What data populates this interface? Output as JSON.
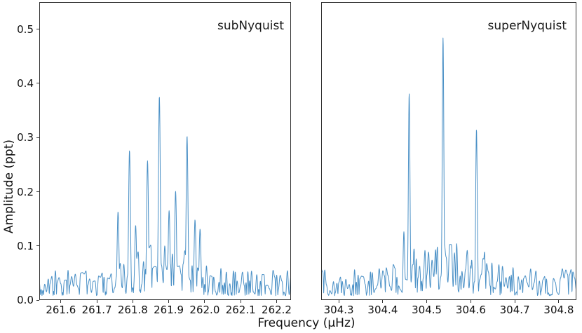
{
  "figure": {
    "xlabel": "Frequency (μHz)",
    "ylabel": "Amplitude (ppt)",
    "line_color": "#4a90c6",
    "axis_color": "#333333",
    "background_color": "#ffffff"
  },
  "chart_data": [
    {
      "type": "line",
      "panel_label": "subNyquist",
      "xlabel": "Frequency (μHz)",
      "ylabel": "Amplitude (ppt)",
      "xlim": [
        261.54,
        262.24
      ],
      "ylim": [
        0,
        0.55
      ],
      "xticks": [
        261.6,
        261.7,
        261.8,
        261.9,
        262.0,
        262.1,
        262.2
      ],
      "xtick_labels": [
        "261.6",
        "261.7",
        "261.8",
        "261.9",
        "262.0",
        "262.1",
        "262.2"
      ],
      "yticks": [
        0.0,
        0.1,
        0.2,
        0.3,
        0.4,
        0.5
      ],
      "ytick_labels": [
        "0.0",
        "0.1",
        "0.2",
        "0.3",
        "0.4",
        "0.5"
      ],
      "show_ytick_labels": true,
      "grid": false,
      "legend": "none",
      "peak_sigma": 0.0036,
      "peaks": [
        {
          "freq": 261.759,
          "amp": 0.163
        },
        {
          "freq": 261.775,
          "amp": 0.066
        },
        {
          "freq": 261.791,
          "amp": 0.276
        },
        {
          "freq": 261.808,
          "amp": 0.138
        },
        {
          "freq": 261.841,
          "amp": 0.257
        },
        {
          "freq": 261.874,
          "amp": 0.376
        },
        {
          "freq": 261.889,
          "amp": 0.1
        },
        {
          "freq": 261.901,
          "amp": 0.165
        },
        {
          "freq": 261.919,
          "amp": 0.201
        },
        {
          "freq": 261.951,
          "amp": 0.303
        },
        {
          "freq": 261.973,
          "amp": 0.148
        },
        {
          "freq": 261.987,
          "amp": 0.131
        }
      ],
      "noise": {
        "floor": 0.008,
        "range": 0.05,
        "dx": 0.005,
        "env_center": 261.88,
        "env_width": 0.085,
        "env_gain": 1.1,
        "seed": 20
      }
    },
    {
      "type": "line",
      "panel_label": "superNyquist",
      "xlabel": "Frequency (μHz)",
      "ylabel": "Amplitude (ppt)",
      "xlim": [
        304.26,
        304.84
      ],
      "ylim": [
        0,
        0.55
      ],
      "xticks": [
        304.3,
        304.4,
        304.5,
        304.6,
        304.7,
        304.8
      ],
      "xtick_labels": [
        "304.3",
        "304.4",
        "304.5",
        "304.6",
        "304.7",
        "304.8"
      ],
      "yticks": [
        0.0,
        0.1,
        0.2,
        0.3,
        0.4,
        0.5
      ],
      "ytick_labels": [
        "0.0",
        "0.1",
        "0.2",
        "0.3",
        "0.4",
        "0.5"
      ],
      "show_ytick_labels": false,
      "grid": false,
      "legend": "none",
      "peak_sigma": 0.0026,
      "peaks": [
        {
          "freq": 304.448,
          "amp": 0.126
        },
        {
          "freq": 304.46,
          "amp": 0.381
        },
        {
          "freq": 304.471,
          "amp": 0.095
        },
        {
          "freq": 304.524,
          "amp": 0.098
        },
        {
          "freq": 304.537,
          "amp": 0.484
        },
        {
          "freq": 304.563,
          "amp": 0.087
        },
        {
          "freq": 304.602,
          "amp": 0.074
        },
        {
          "freq": 304.613,
          "amp": 0.315
        },
        {
          "freq": 304.631,
          "amp": 0.089
        }
      ],
      "noise": {
        "floor": 0.008,
        "range": 0.05,
        "dx": 0.004,
        "env_center": 304.54,
        "env_width": 0.09,
        "env_gain": 0.9,
        "seed": 7
      }
    }
  ]
}
